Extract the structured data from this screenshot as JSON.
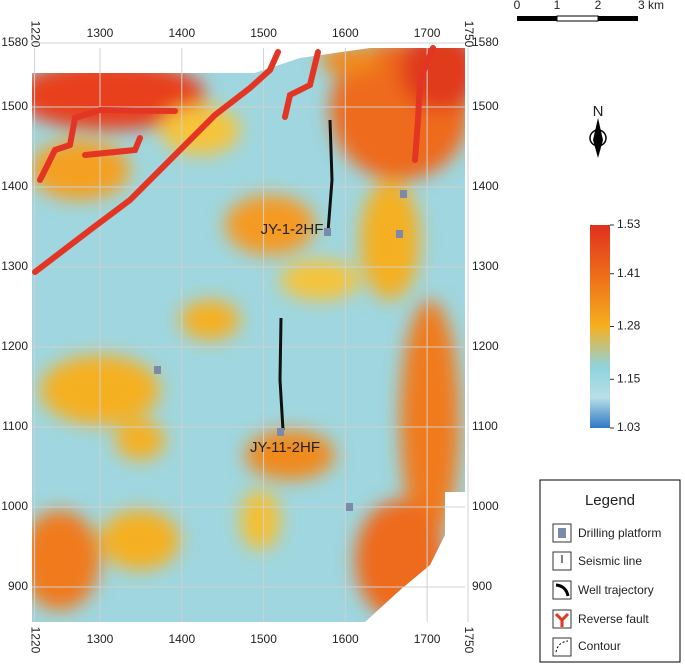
{
  "map": {
    "xlim": [
      1220,
      1750
    ],
    "ylim": [
      860,
      1580
    ],
    "xticks": [
      1220,
      1300,
      1400,
      1500,
      1600,
      1700,
      1750
    ],
    "yticks": [
      1580,
      1500,
      1400,
      1300,
      1200,
      1100,
      1000,
      900
    ],
    "wells": [
      "JY-1-2HF",
      "JY-11-2HF"
    ],
    "north": "N",
    "scale_bar": [
      "0",
      "1",
      "2",
      "3 km"
    ],
    "colorbar": {
      "lim": [
        1.03,
        1.53
      ],
      "ticks": [
        1.53,
        1.41,
        1.28,
        1.15,
        1.03
      ]
    },
    "legend": {
      "title": "Legend",
      "items": [
        "Drilling platform",
        "Seismic line",
        "Well trajectory",
        "Reverse fault",
        "Contour"
      ]
    }
  }
}
